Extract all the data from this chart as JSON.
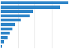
{
  "values": [
    560,
    490,
    270,
    240,
    165,
    120,
    95,
    75,
    55,
    28,
    12
  ],
  "bar_color": "#2d84c8",
  "background_color": "#ffffff",
  "grid_color": "#d9d9d9",
  "figsize": [
    1.0,
    0.71
  ],
  "dpi": 100
}
